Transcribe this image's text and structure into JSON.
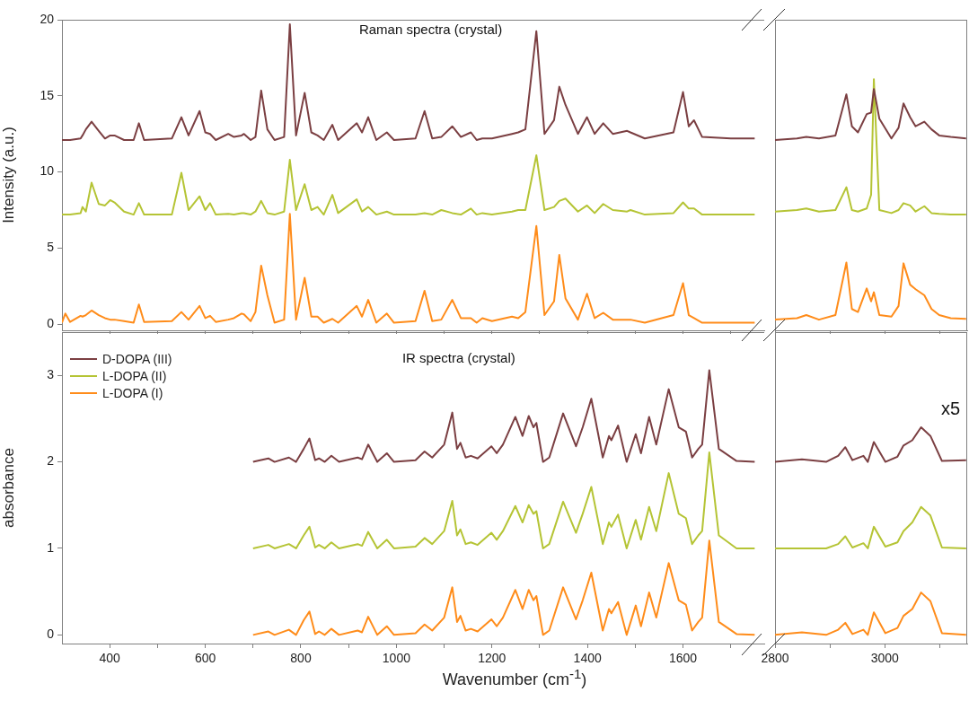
{
  "chart_data": [
    {
      "type": "line",
      "title": "Raman spectra (crystal)",
      "ylabel": "Intensity (a.u.)",
      "tick_labels": "y",
      "xlim": [
        300,
        1770
      ],
      "ylim": [
        -0.4,
        20
      ],
      "xticks": [
        400,
        {
          "value": 500,
          "label": null
        },
        600,
        {
          "value": 700,
          "label": null
        },
        800,
        {
          "value": 900,
          "label": null
        },
        1000,
        {
          "value": 1100,
          "label": null
        },
        1200,
        {
          "value": 1300,
          "label": null
        },
        1400,
        {
          "value": 1500,
          "label": null
        },
        1600,
        {
          "value": 1700,
          "label": null
        }
      ],
      "yticks": [
        0,
        5,
        10,
        15,
        20
      ],
      "x": [
        300,
        307,
        317,
        339,
        343,
        350,
        362,
        377,
        390,
        401,
        410,
        430,
        450,
        461,
        472,
        530,
        550,
        565,
        588,
        600,
        610,
        622,
        648,
        660,
        676,
        681,
        695,
        705,
        717,
        730,
        745,
        765,
        777,
        790,
        808,
        822,
        835,
        848,
        866,
        878,
        917,
        928,
        941,
        958,
        980,
        995,
        1040,
        1059,
        1075,
        1094,
        1117,
        1135,
        1156,
        1168,
        1180,
        1200,
        1242,
        1255,
        1270,
        1293,
        1310,
        1330,
        1341,
        1354,
        1380,
        1399,
        1415,
        1433,
        1453,
        1483,
        1490,
        1520,
        1580,
        1600,
        1612,
        1623,
        1640,
        1700,
        1750
      ],
      "series": [
        {
          "color": "#7b3f42",
          "values": [
            12.1,
            12.1,
            12.1,
            12.2,
            12.4,
            12.8,
            13.3,
            12.7,
            12.2,
            12.4,
            12.4,
            12.1,
            12.1,
            13.2,
            12.1,
            12.2,
            13.6,
            12.4,
            14.0,
            12.6,
            12.5,
            12.1,
            12.5,
            12.3,
            12.4,
            12.5,
            12.1,
            12.3,
            15.35,
            12.8,
            12.1,
            12.3,
            19.7,
            12.4,
            15.2,
            12.6,
            12.4,
            12.1,
            13.1,
            12.1,
            13.2,
            12.6,
            13.6,
            12.1,
            12.6,
            12.1,
            12.2,
            14.0,
            12.2,
            12.3,
            13.0,
            12.3,
            12.6,
            12.1,
            12.2,
            12.2,
            12.5,
            12.6,
            12.8,
            19.25,
            12.5,
            13.4,
            15.6,
            14.4,
            12.5,
            13.6,
            12.5,
            13.2,
            12.5,
            12.7,
            12.6,
            12.2,
            12.6,
            15.25,
            13.0,
            13.4,
            12.3,
            12.2,
            12.2
          ]
        },
        {
          "color": "#b5c435",
          "values": [
            7.2,
            7.2,
            7.2,
            7.3,
            7.7,
            7.4,
            9.3,
            7.9,
            7.8,
            8.15,
            8.0,
            7.4,
            7.2,
            7.95,
            7.2,
            7.2,
            9.95,
            7.5,
            8.4,
            7.5,
            7.95,
            7.2,
            7.25,
            7.2,
            7.3,
            7.3,
            7.2,
            7.4,
            8.1,
            7.3,
            7.2,
            7.4,
            10.8,
            7.5,
            9.2,
            7.5,
            7.7,
            7.2,
            8.5,
            7.3,
            8.2,
            7.4,
            7.7,
            7.2,
            7.4,
            7.2,
            7.2,
            7.3,
            7.2,
            7.5,
            7.3,
            7.2,
            7.6,
            7.2,
            7.3,
            7.2,
            7.4,
            7.5,
            7.5,
            11.1,
            7.5,
            7.7,
            8.1,
            8.25,
            7.4,
            7.8,
            7.3,
            7.9,
            7.5,
            7.4,
            7.5,
            7.2,
            7.3,
            8.0,
            7.6,
            7.6,
            7.2,
            7.2,
            7.2
          ]
        },
        {
          "color": "#ff8c1a",
          "values": [
            0.1,
            0.7,
            0.15,
            0.55,
            0.5,
            0.6,
            0.9,
            0.6,
            0.4,
            0.3,
            0.3,
            0.2,
            0.1,
            1.3,
            0.15,
            0.2,
            0.8,
            0.3,
            1.2,
            0.4,
            0.55,
            0.15,
            0.3,
            0.4,
            0.7,
            0.65,
            0.2,
            0.8,
            3.85,
            1.9,
            0.1,
            0.3,
            7.25,
            0.3,
            3.05,
            0.5,
            0.5,
            0.1,
            0.35,
            0.1,
            1.2,
            0.5,
            1.6,
            0.1,
            0.7,
            0.1,
            0.2,
            2.2,
            0.2,
            0.3,
            1.6,
            0.4,
            0.4,
            0.1,
            0.4,
            0.2,
            0.5,
            0.4,
            0.8,
            6.45,
            0.6,
            1.5,
            4.55,
            1.7,
            0.3,
            2.0,
            0.4,
            0.75,
            0.3,
            0.3,
            0.3,
            0.1,
            0.6,
            2.7,
            0.6,
            0.4,
            0.1,
            0.1,
            0.1
          ]
        }
      ]
    },
    {
      "type": "line",
      "tick_labels": false,
      "xlim": [
        2800,
        3150
      ],
      "ylim": [
        -0.4,
        20
      ],
      "xticks": [
        2800,
        {
          "value": 2900,
          "label": null
        },
        3000,
        {
          "value": 3100,
          "label": null
        }
      ],
      "x": [
        2800,
        2840,
        2857,
        2880,
        2910,
        2930,
        2940,
        2951,
        2967,
        2975,
        2980,
        2990,
        3012,
        3025,
        3034,
        3046,
        3056,
        3072,
        3085,
        3099,
        3120,
        3148
      ],
      "series": [
        {
          "color": "#7b3f42",
          "values": [
            12.1,
            12.2,
            12.3,
            12.2,
            12.4,
            15.1,
            13.0,
            12.6,
            13.8,
            13.9,
            15.45,
            13.5,
            12.2,
            12.9,
            14.5,
            13.6,
            13.0,
            13.3,
            12.8,
            12.4,
            12.3,
            12.2
          ]
        },
        {
          "color": "#b5c435",
          "values": [
            7.4,
            7.5,
            7.6,
            7.4,
            7.5,
            9.0,
            7.5,
            7.4,
            7.6,
            8.5,
            16.1,
            7.5,
            7.3,
            7.5,
            7.95,
            7.8,
            7.4,
            7.75,
            7.3,
            7.25,
            7.2,
            7.2
          ]
        },
        {
          "color": "#ff8c1a",
          "values": [
            0.3,
            0.4,
            0.6,
            0.3,
            0.6,
            4.05,
            1.0,
            0.8,
            2.35,
            1.5,
            2.1,
            0.6,
            0.5,
            1.2,
            4.0,
            2.6,
            2.3,
            1.9,
            1.0,
            0.6,
            0.4,
            0.35
          ]
        }
      ]
    },
    {
      "type": "line",
      "title": "IR spectra (crystal)",
      "ylabel": "absorbance",
      "xlabel": "Wavenumber (cm$^{-1}$)",
      "legend": "top left",
      "xlim": [
        300,
        1770
      ],
      "ylim": [
        -0.1,
        3.5
      ],
      "xticks": [
        400,
        {
          "value": 500,
          "label": null
        },
        600,
        {
          "value": 700,
          "label": null
        },
        800,
        {
          "value": 900,
          "label": null
        },
        1000,
        {
          "value": 1100,
          "label": null
        },
        1200,
        {
          "value": 1300,
          "label": null
        },
        1400,
        {
          "value": 1500,
          "label": null
        },
        1600,
        {
          "value": 1700,
          "label": null
        }
      ],
      "yticks": [
        0,
        1,
        2,
        3
      ],
      "x": [
        700,
        732,
        745,
        775,
        790,
        806,
        818,
        830,
        838,
        850,
        864,
        880,
        919,
        928,
        941,
        960,
        980,
        995,
        1040,
        1059,
        1075,
        1100,
        1117,
        1127,
        1134,
        1145,
        1156,
        1170,
        1199,
        1210,
        1223,
        1249,
        1264,
        1277,
        1287,
        1293,
        1307,
        1320,
        1349,
        1376,
        1390,
        1408,
        1432,
        1445,
        1450,
        1464,
        1482,
        1501,
        1512,
        1529,
        1544,
        1570,
        1591,
        1606,
        1619,
        1632,
        1640,
        1655,
        1675,
        1712,
        1750
      ],
      "series": [
        {
          "name": "D-DOPA (III)",
          "color": "#7b3f42",
          "values": [
            2.0,
            2.04,
            2.0,
            2.05,
            2.0,
            2.15,
            2.27,
            2.02,
            2.04,
            2.0,
            2.07,
            2.0,
            2.05,
            2.03,
            2.2,
            2.0,
            2.1,
            2.0,
            2.02,
            2.12,
            2.05,
            2.2,
            2.57,
            2.15,
            2.22,
            2.05,
            2.07,
            2.04,
            2.18,
            2.1,
            2.2,
            2.52,
            2.3,
            2.53,
            2.4,
            2.45,
            2.0,
            2.05,
            2.56,
            2.18,
            2.4,
            2.73,
            2.05,
            2.3,
            2.25,
            2.42,
            2.0,
            2.32,
            2.1,
            2.52,
            2.2,
            2.84,
            2.4,
            2.35,
            2.05,
            2.15,
            2.2,
            3.06,
            2.15,
            2.01,
            2.0
          ]
        },
        {
          "name": "L-DOPA (II)",
          "color": "#b5c435",
          "values": [
            1.0,
            1.04,
            1.0,
            1.05,
            1.0,
            1.15,
            1.25,
            1.01,
            1.04,
            1.0,
            1.07,
            1.0,
            1.05,
            1.03,
            1.19,
            1.0,
            1.1,
            1.0,
            1.02,
            1.12,
            1.05,
            1.2,
            1.55,
            1.15,
            1.22,
            1.05,
            1.07,
            1.04,
            1.18,
            1.1,
            1.2,
            1.49,
            1.3,
            1.5,
            1.4,
            1.43,
            1.0,
            1.05,
            1.54,
            1.18,
            1.4,
            1.71,
            1.05,
            1.3,
            1.25,
            1.39,
            1.0,
            1.33,
            1.1,
            1.48,
            1.2,
            1.87,
            1.4,
            1.35,
            1.05,
            1.15,
            1.2,
            2.11,
            1.15,
            1.0,
            1.0
          ]
        },
        {
          "name": "L-DOPA (I)",
          "color": "#ff8c1a",
          "values": [
            0.0,
            0.04,
            0.0,
            0.06,
            0.0,
            0.17,
            0.27,
            0.01,
            0.04,
            0.0,
            0.07,
            0.0,
            0.05,
            0.03,
            0.21,
            0.0,
            0.1,
            0.0,
            0.02,
            0.12,
            0.05,
            0.2,
            0.55,
            0.15,
            0.22,
            0.05,
            0.07,
            0.04,
            0.18,
            0.1,
            0.2,
            0.52,
            0.3,
            0.52,
            0.4,
            0.45,
            0.0,
            0.05,
            0.55,
            0.18,
            0.4,
            0.72,
            0.05,
            0.3,
            0.25,
            0.38,
            0.0,
            0.34,
            0.1,
            0.49,
            0.2,
            0.83,
            0.4,
            0.35,
            0.05,
            0.15,
            0.2,
            1.09,
            0.15,
            0.01,
            0.0
          ]
        }
      ]
    },
    {
      "type": "line",
      "tick_labels": "x",
      "annotations": [
        "x5"
      ],
      "xlim": [
        2800,
        3150
      ],
      "ylim": [
        -0.1,
        3.5
      ],
      "xticks": [
        2800,
        {
          "value": 2900,
          "label": null
        },
        3000,
        {
          "value": 3100,
          "label": null
        }
      ],
      "x": [
        2800,
        2849,
        2893,
        2915,
        2928,
        2941,
        2961,
        2969,
        2980,
        3001,
        3023,
        3034,
        3050,
        3066,
        3083,
        3104,
        3148
      ],
      "series": [
        {
          "color": "#7b3f42",
          "values": [
            2.0,
            2.03,
            2.0,
            2.07,
            2.17,
            2.02,
            2.07,
            2.0,
            2.23,
            2.0,
            2.06,
            2.19,
            2.25,
            2.4,
            2.3,
            2.01,
            2.02
          ]
        },
        {
          "color": "#b5c435",
          "values": [
            1.0,
            1.0,
            1.0,
            1.05,
            1.14,
            1.01,
            1.06,
            1.0,
            1.25,
            1.02,
            1.07,
            1.2,
            1.3,
            1.48,
            1.38,
            1.01,
            1.0
          ]
        },
        {
          "color": "#ff8c1a",
          "values": [
            0.0,
            0.03,
            0.0,
            0.06,
            0.14,
            0.01,
            0.06,
            0.0,
            0.26,
            0.02,
            0.08,
            0.22,
            0.3,
            0.49,
            0.39,
            0.02,
            0.0
          ]
        }
      ]
    }
  ]
}
